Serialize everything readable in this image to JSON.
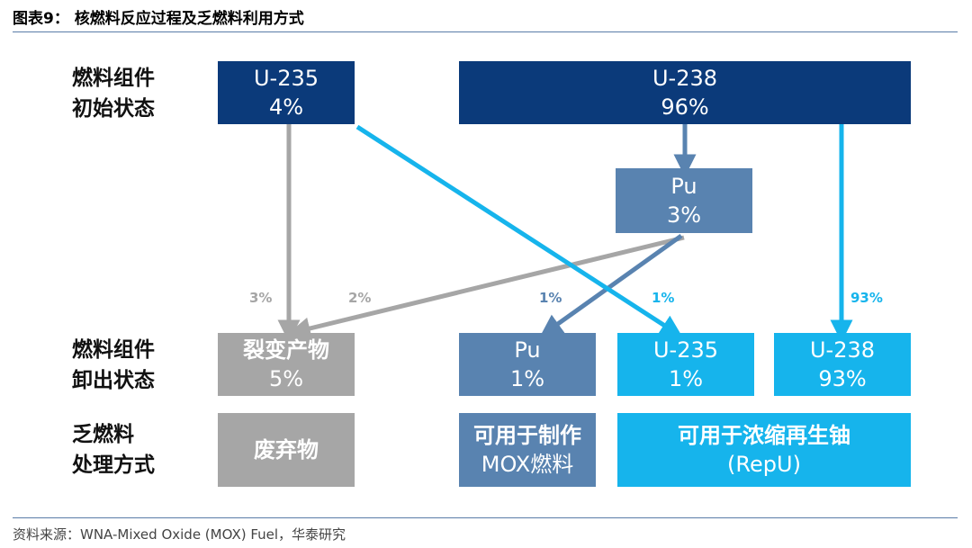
{
  "title": "图表9： 核燃料反应过程及乏燃料利用方式",
  "row_labels": {
    "initial": [
      "燃料组件",
      "初始状态"
    ],
    "unloaded": [
      "燃料组件",
      "卸出状态"
    ],
    "spent": [
      "乏燃料",
      "处理方式"
    ]
  },
  "boxes": {
    "u235_initial": {
      "name": "U-235",
      "value": "4%"
    },
    "u238_initial": {
      "name": "U-238",
      "value": "96%"
    },
    "pu_mid": {
      "name": "Pu",
      "value": "3%"
    },
    "fission": {
      "name": "裂变产物",
      "value": "5%"
    },
    "pu_out": {
      "name": "Pu",
      "value": "1%"
    },
    "u235_out": {
      "name": "U-235",
      "value": "1%"
    },
    "u238_out": {
      "name": "U-238",
      "value": "93%"
    },
    "waste": {
      "text": "废弃物"
    },
    "mox": {
      "line1": "可用于制作",
      "line2": "MOX燃料"
    },
    "repu": {
      "line1": "可用于浓缩再生铀",
      "line2": "(RepU)"
    }
  },
  "flow_labels": {
    "u235_to_fission": "3%",
    "pu_to_fission": "2%",
    "pu_to_pu": "1%",
    "u235_to_u235": "1%",
    "u238_to_u238": "93%"
  },
  "colors": {
    "navy": "#0b3a7a",
    "steel": "#5983b0",
    "gray": "#a6a6a6",
    "cyan": "#16b4ec"
  },
  "source": "资料来源：WNA-Mixed Oxide (MOX) Fuel，华泰研究"
}
